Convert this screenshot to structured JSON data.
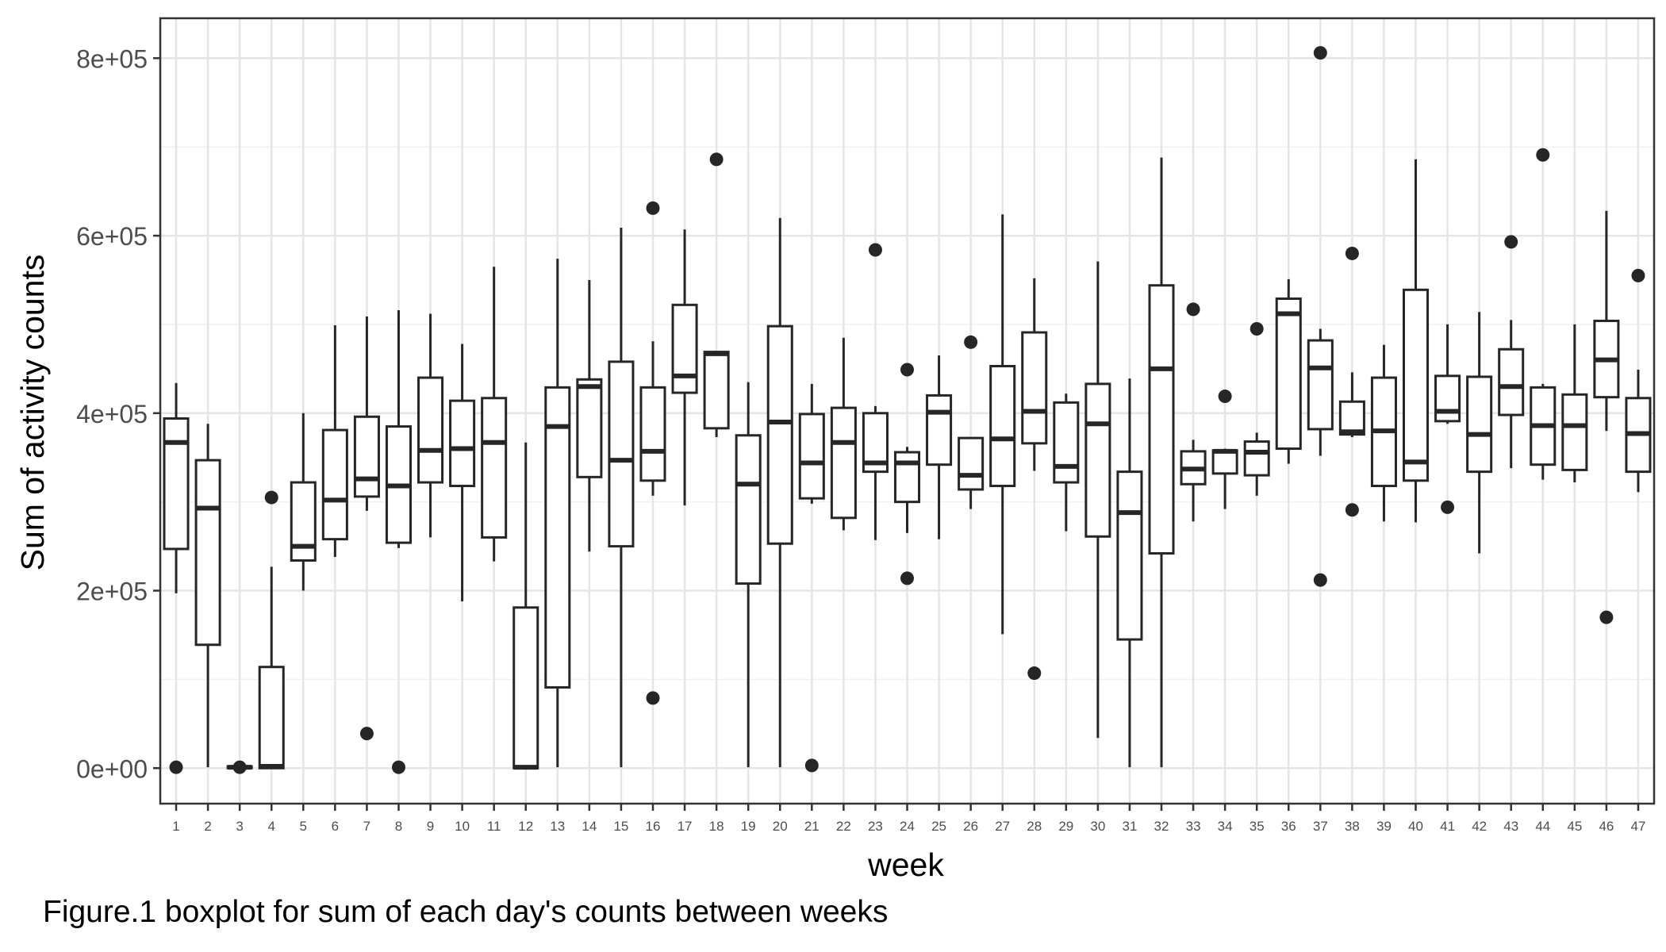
{
  "caption": "Figure.1 boxplot for sum of each day's counts between weeks",
  "chart_data": {
    "type": "boxplot",
    "title": "",
    "xlabel": "week",
    "ylabel": "Sum of activity counts",
    "ylim": [
      -40000,
      845000
    ],
    "yticks": [
      0,
      200000,
      400000,
      600000,
      800000
    ],
    "ytick_labels": [
      "0e+00",
      "2e+05",
      "4e+05",
      "6e+05",
      "8e+05"
    ],
    "grid": true,
    "legend": "none",
    "colors": {
      "box_stroke": "#262626",
      "point": "#262626",
      "grid": "#e5e5e5",
      "panel_border": "#333333"
    },
    "categories": [
      "1",
      "2",
      "3",
      "4",
      "5",
      "6",
      "7",
      "8",
      "9",
      "10",
      "11",
      "12",
      "13",
      "14",
      "15",
      "16",
      "17",
      "18",
      "19",
      "20",
      "21",
      "22",
      "23",
      "24",
      "25",
      "26",
      "27",
      "28",
      "29",
      "30",
      "31",
      "32",
      "33",
      "34",
      "35",
      "36",
      "37",
      "38",
      "39",
      "40",
      "41",
      "42",
      "43",
      "44",
      "45",
      "46",
      "47"
    ],
    "boxes": [
      {
        "week": "1",
        "whisker_low": 197000,
        "q1": 247000,
        "median": 367000,
        "q3": 394000,
        "whisker_high": 434000,
        "outliers": [
          1000
        ]
      },
      {
        "week": "2",
        "whisker_low": 1000,
        "q1": 139000,
        "median": 293000,
        "q3": 347000,
        "whisker_high": 388000,
        "outliers": []
      },
      {
        "week": "3",
        "whisker_low": 0,
        "q1": 0,
        "median": 1000,
        "q3": 2000,
        "whisker_high": 3000,
        "outliers": [
          1000
        ]
      },
      {
        "week": "4",
        "whisker_low": 0,
        "q1": 0,
        "median": 2000,
        "q3": 114000,
        "whisker_high": 227000,
        "outliers": [
          305000
        ]
      },
      {
        "week": "5",
        "whisker_low": 200000,
        "q1": 234000,
        "median": 250000,
        "q3": 322000,
        "whisker_high": 400000,
        "outliers": []
      },
      {
        "week": "6",
        "whisker_low": 238000,
        "q1": 258000,
        "median": 302000,
        "q3": 381000,
        "whisker_high": 499000,
        "outliers": []
      },
      {
        "week": "7",
        "whisker_low": 290000,
        "q1": 306000,
        "median": 326000,
        "q3": 396000,
        "whisker_high": 509000,
        "outliers": [
          39000
        ]
      },
      {
        "week": "8",
        "whisker_low": 248000,
        "q1": 254000,
        "median": 318000,
        "q3": 385000,
        "whisker_high": 516000,
        "outliers": [
          1000
        ]
      },
      {
        "week": "9",
        "whisker_low": 260000,
        "q1": 322000,
        "median": 358000,
        "q3": 440000,
        "whisker_high": 512000,
        "outliers": []
      },
      {
        "week": "10",
        "whisker_low": 188000,
        "q1": 318000,
        "median": 360000,
        "q3": 414000,
        "whisker_high": 478000,
        "outliers": []
      },
      {
        "week": "11",
        "whisker_low": 233000,
        "q1": 260000,
        "median": 367000,
        "q3": 417000,
        "whisker_high": 565000,
        "outliers": []
      },
      {
        "week": "12",
        "whisker_low": 0,
        "q1": 0,
        "median": 1000,
        "q3": 181000,
        "whisker_high": 367000,
        "outliers": []
      },
      {
        "week": "13",
        "whisker_low": 1000,
        "q1": 91000,
        "median": 385000,
        "q3": 429000,
        "whisker_high": 574000,
        "outliers": []
      },
      {
        "week": "14",
        "whisker_low": 244000,
        "q1": 328000,
        "median": 430000,
        "q3": 438000,
        "whisker_high": 550000,
        "outliers": []
      },
      {
        "week": "15",
        "whisker_low": 1000,
        "q1": 250000,
        "median": 347000,
        "q3": 458000,
        "whisker_high": 609000,
        "outliers": []
      },
      {
        "week": "16",
        "whisker_low": 307000,
        "q1": 324000,
        "median": 357000,
        "q3": 429000,
        "whisker_high": 481000,
        "outliers": [
          631000,
          79000
        ]
      },
      {
        "week": "17",
        "whisker_low": 296000,
        "q1": 423000,
        "median": 442000,
        "q3": 522000,
        "whisker_high": 607000,
        "outliers": []
      },
      {
        "week": "18",
        "whisker_low": 373000,
        "q1": 383000,
        "median": 467000,
        "q3": 469000,
        "whisker_high": 470000,
        "outliers": [
          686000
        ]
      },
      {
        "week": "19",
        "whisker_low": 1000,
        "q1": 208000,
        "median": 320000,
        "q3": 375000,
        "whisker_high": 435000,
        "outliers": []
      },
      {
        "week": "20",
        "whisker_low": 1000,
        "q1": 253000,
        "median": 390000,
        "q3": 498000,
        "whisker_high": 620000,
        "outliers": []
      },
      {
        "week": "21",
        "whisker_low": 298000,
        "q1": 304000,
        "median": 344000,
        "q3": 399000,
        "whisker_high": 433000,
        "outliers": [
          3000
        ]
      },
      {
        "week": "22",
        "whisker_low": 268000,
        "q1": 282000,
        "median": 367000,
        "q3": 406000,
        "whisker_high": 485000,
        "outliers": []
      },
      {
        "week": "23",
        "whisker_low": 257000,
        "q1": 334000,
        "median": 344000,
        "q3": 400000,
        "whisker_high": 408000,
        "outliers": [
          584000
        ]
      },
      {
        "week": "24",
        "whisker_low": 265000,
        "q1": 300000,
        "median": 344000,
        "q3": 356000,
        "whisker_high": 362000,
        "outliers": [
          449000,
          214000
        ]
      },
      {
        "week": "25",
        "whisker_low": 258000,
        "q1": 342000,
        "median": 401000,
        "q3": 420000,
        "whisker_high": 465000,
        "outliers": []
      },
      {
        "week": "26",
        "whisker_low": 292000,
        "q1": 314000,
        "median": 330000,
        "q3": 372000,
        "whisker_high": 372000,
        "outliers": [
          480000
        ]
      },
      {
        "week": "27",
        "whisker_low": 151000,
        "q1": 318000,
        "median": 371000,
        "q3": 453000,
        "whisker_high": 624000,
        "outliers": []
      },
      {
        "week": "28",
        "whisker_low": 335000,
        "q1": 366000,
        "median": 402000,
        "q3": 491000,
        "whisker_high": 552000,
        "outliers": [
          107000
        ]
      },
      {
        "week": "29",
        "whisker_low": 267000,
        "q1": 322000,
        "median": 340000,
        "q3": 412000,
        "whisker_high": 422000,
        "outliers": []
      },
      {
        "week": "30",
        "whisker_low": 34000,
        "q1": 261000,
        "median": 388000,
        "q3": 433000,
        "whisker_high": 571000,
        "outliers": []
      },
      {
        "week": "31",
        "whisker_low": 1000,
        "q1": 145000,
        "median": 288000,
        "q3": 334000,
        "whisker_high": 439000,
        "outliers": []
      },
      {
        "week": "32",
        "whisker_low": 1000,
        "q1": 242000,
        "median": 450000,
        "q3": 544000,
        "whisker_high": 688000,
        "outliers": []
      },
      {
        "week": "33",
        "whisker_low": 278000,
        "q1": 320000,
        "median": 337000,
        "q3": 357000,
        "whisker_high": 370000,
        "outliers": [
          517000
        ]
      },
      {
        "week": "34",
        "whisker_low": 292000,
        "q1": 332000,
        "median": 357000,
        "q3": 358000,
        "whisker_high": 360000,
        "outliers": [
          419000
        ]
      },
      {
        "week": "35",
        "whisker_low": 307000,
        "q1": 330000,
        "median": 356000,
        "q3": 368000,
        "whisker_high": 378000,
        "outliers": [
          495000
        ]
      },
      {
        "week": "36",
        "whisker_low": 343000,
        "q1": 360000,
        "median": 512000,
        "q3": 529000,
        "whisker_high": 551000,
        "outliers": []
      },
      {
        "week": "37",
        "whisker_low": 352000,
        "q1": 382000,
        "median": 451000,
        "q3": 482000,
        "whisker_high": 495000,
        "outliers": [
          806000,
          212000
        ]
      },
      {
        "week": "38",
        "whisker_low": 373000,
        "q1": 376000,
        "median": 379000,
        "q3": 413000,
        "whisker_high": 446000,
        "outliers": [
          580000,
          291000
        ]
      },
      {
        "week": "39",
        "whisker_low": 278000,
        "q1": 318000,
        "median": 380000,
        "q3": 440000,
        "whisker_high": 477000,
        "outliers": []
      },
      {
        "week": "40",
        "whisker_low": 277000,
        "q1": 324000,
        "median": 345000,
        "q3": 539000,
        "whisker_high": 686000,
        "outliers": []
      },
      {
        "week": "41",
        "whisker_low": 388000,
        "q1": 391000,
        "median": 402000,
        "q3": 442000,
        "whisker_high": 500000,
        "outliers": [
          294000
        ]
      },
      {
        "week": "42",
        "whisker_low": 242000,
        "q1": 334000,
        "median": 376000,
        "q3": 441000,
        "whisker_high": 514000,
        "outliers": []
      },
      {
        "week": "43",
        "whisker_low": 338000,
        "q1": 398000,
        "median": 430000,
        "q3": 472000,
        "whisker_high": 505000,
        "outliers": [
          593000
        ]
      },
      {
        "week": "44",
        "whisker_low": 325000,
        "q1": 342000,
        "median": 386000,
        "q3": 429000,
        "whisker_high": 433000,
        "outliers": [
          691000
        ]
      },
      {
        "week": "45",
        "whisker_low": 322000,
        "q1": 336000,
        "median": 386000,
        "q3": 421000,
        "whisker_high": 500000,
        "outliers": []
      },
      {
        "week": "46",
        "whisker_low": 380000,
        "q1": 418000,
        "median": 460000,
        "q3": 504000,
        "whisker_high": 628000,
        "outliers": [
          170000
        ]
      },
      {
        "week": "47",
        "whisker_low": 311000,
        "q1": 334000,
        "median": 377000,
        "q3": 417000,
        "whisker_high": 449000,
        "outliers": [
          555000
        ]
      }
    ]
  }
}
